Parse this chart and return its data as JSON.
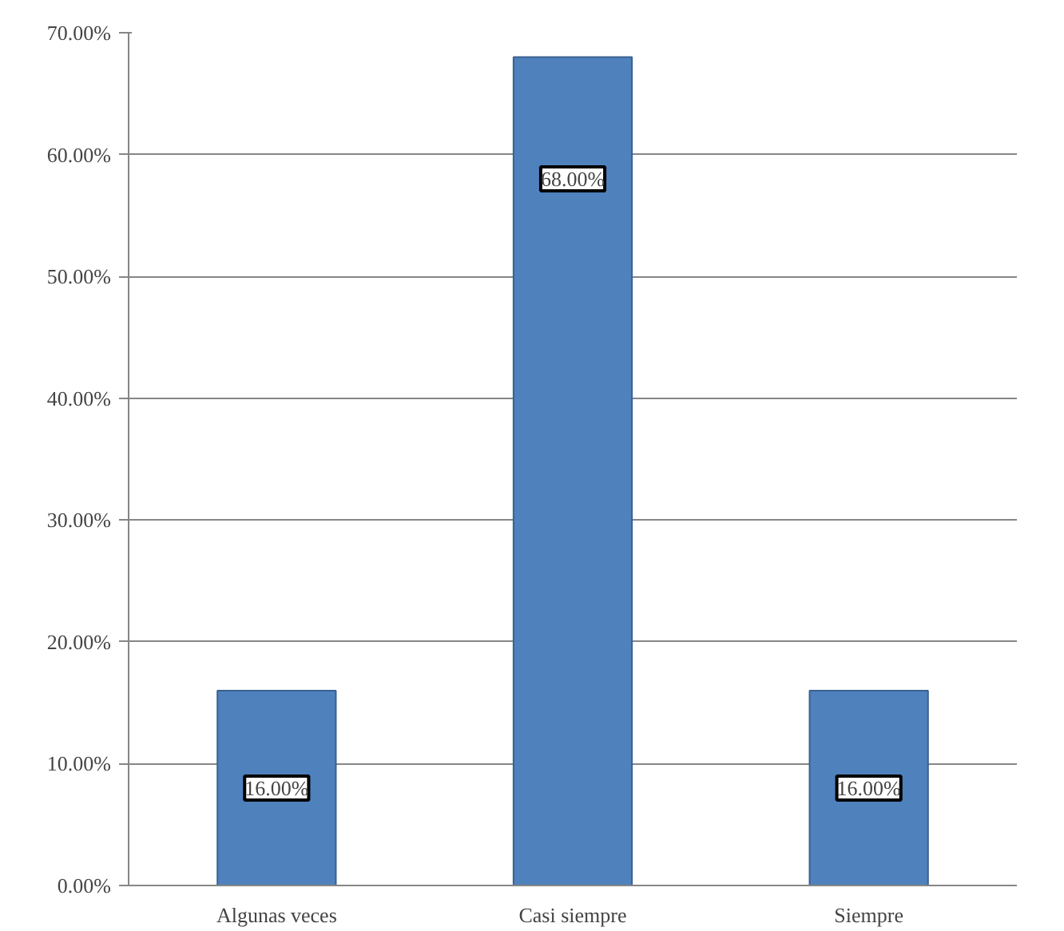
{
  "chart_data": {
    "type": "bar",
    "categories": [
      "Algunas veces",
      "Casi siempre",
      "Siempre"
    ],
    "values": [
      16,
      68,
      16
    ],
    "color": "#4f81bd",
    "value_labels": [
      "16.00%",
      "68.00%",
      "16.00%"
    ],
    "ylim": [
      0,
      70
    ],
    "yticks": [
      {
        "value": 0,
        "label": "0.00%"
      },
      {
        "value": 10,
        "label": "10.00%"
      },
      {
        "value": 20,
        "label": "20.00%"
      },
      {
        "value": 30,
        "label": "30.00%"
      },
      {
        "value": 40,
        "label": "40.00%"
      },
      {
        "value": 50,
        "label": "50.00%"
      },
      {
        "value": 60,
        "label": "60.00%"
      },
      {
        "value": 70,
        "label": "70.00%"
      }
    ],
    "grid": "y"
  }
}
